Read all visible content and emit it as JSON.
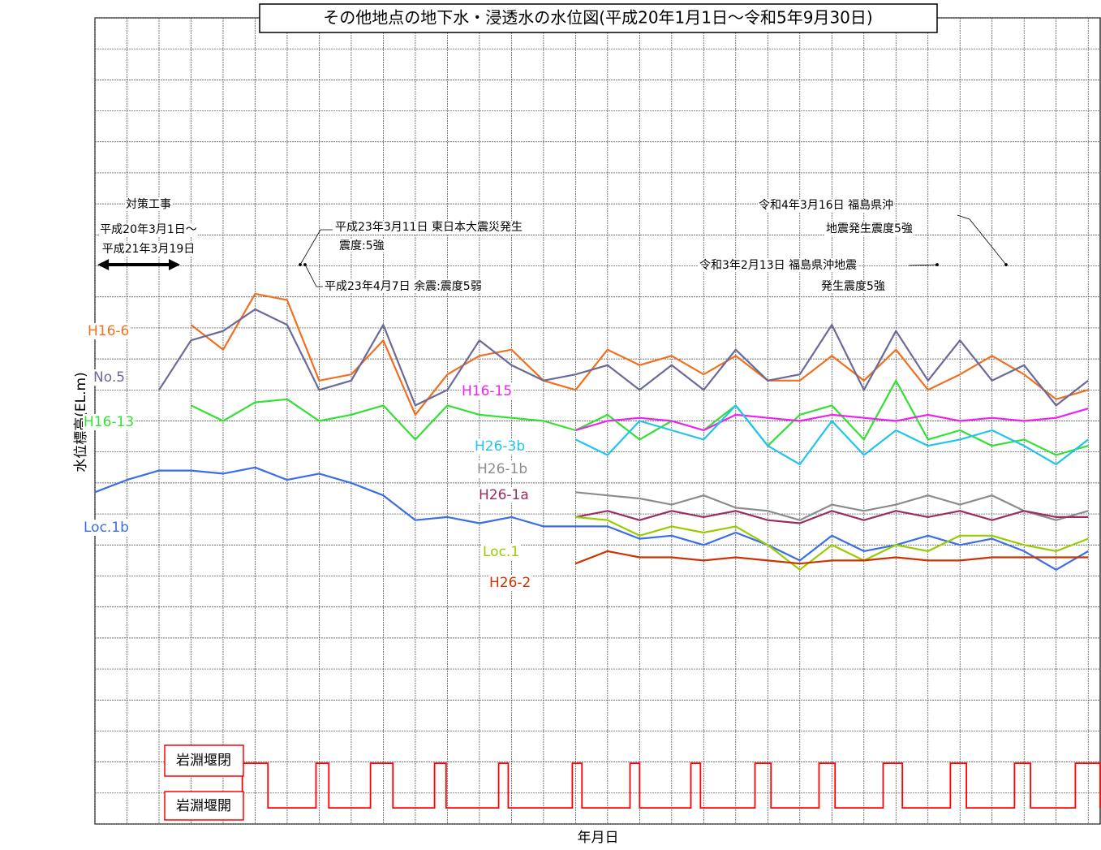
{
  "chart_data": {
    "type": "line",
    "title": "その他地点の地下水・浸透水の水位図(平成20年1月1日～令和5年9月30日)",
    "y_label": "水位標高(EL.m)",
    "x_label": "年月日",
    "xlim": [
      0,
      31.4
    ],
    "ylim": [
      0,
      26
    ],
    "grid_x": [
      0,
      1,
      2,
      3,
      4,
      5,
      6,
      7,
      8,
      9,
      10,
      11,
      12,
      13,
      14,
      15,
      16,
      17,
      18,
      19,
      20,
      21,
      22,
      23,
      24,
      25,
      26,
      27,
      28,
      29,
      30,
      31
    ],
    "grid_y": [
      0,
      1,
      2,
      3,
      4,
      5,
      6,
      7,
      8,
      9,
      10,
      11,
      12,
      13,
      14,
      15,
      16,
      17,
      18,
      19,
      20,
      21,
      22,
      23,
      24,
      25,
      26
    ],
    "x": [
      0,
      1,
      2,
      3,
      4,
      5,
      6,
      7,
      8,
      9,
      10,
      11,
      12,
      13,
      14,
      15,
      16,
      17,
      18,
      19,
      20,
      21,
      22,
      23,
      24,
      25,
      26,
      27,
      28,
      29,
      30,
      31
    ],
    "series": [
      {
        "name": "H16-6",
        "color": "#f07020",
        "values": [
          null,
          null,
          null,
          16.1,
          15.3,
          17.1,
          16.9,
          14.3,
          14.5,
          15.6,
          13.2,
          14.5,
          15.1,
          15.3,
          14.3,
          14.0,
          15.3,
          14.8,
          15.1,
          14.5,
          15.1,
          14.3,
          14.3,
          15.1,
          14.3,
          15.3,
          14.0,
          14.5,
          15.1,
          14.5,
          13.7,
          14.0
        ]
      },
      {
        "name": "No.5",
        "color": "#6a6a98",
        "values": [
          null,
          null,
          14.0,
          15.6,
          15.9,
          16.6,
          16.1,
          14.0,
          14.3,
          16.1,
          13.5,
          14.0,
          15.6,
          14.8,
          14.3,
          14.5,
          14.8,
          14.0,
          14.8,
          14.0,
          15.3,
          14.3,
          14.5,
          16.1,
          14.0,
          15.9,
          14.3,
          15.6,
          14.3,
          14.8,
          13.5,
          14.3
        ]
      },
      {
        "name": "H16-13",
        "color": "#33e033",
        "values": [
          null,
          null,
          null,
          13.5,
          13.0,
          13.6,
          13.7,
          13.0,
          13.2,
          13.5,
          12.4,
          13.5,
          13.2,
          13.1,
          13.0,
          12.7,
          13.2,
          12.4,
          13.0,
          12.7,
          13.5,
          12.2,
          13.2,
          13.5,
          12.4,
          14.3,
          12.4,
          12.7,
          12.2,
          12.4,
          11.9,
          12.2
        ]
      },
      {
        "name": "H16-15",
        "color": "#ee22ee",
        "values": [
          null,
          null,
          null,
          null,
          null,
          null,
          null,
          null,
          null,
          null,
          null,
          null,
          null,
          null,
          null,
          12.7,
          13.0,
          13.1,
          13.0,
          12.7,
          13.2,
          13.1,
          13.0,
          13.2,
          13.1,
          13.0,
          13.2,
          13.0,
          13.1,
          13.0,
          13.1,
          13.4
        ]
      },
      {
        "name": "H26-3b",
        "color": "#22c4ee",
        "values": [
          null,
          null,
          null,
          null,
          null,
          null,
          null,
          null,
          null,
          null,
          null,
          null,
          null,
          null,
          null,
          12.4,
          11.9,
          13.0,
          12.7,
          12.4,
          13.5,
          12.2,
          11.6,
          13.0,
          11.9,
          12.7,
          12.2,
          12.4,
          12.7,
          12.2,
          11.6,
          12.4
        ]
      },
      {
        "name": "H26-1b",
        "color": "#8c8c8c",
        "values": [
          null,
          null,
          null,
          null,
          null,
          null,
          null,
          null,
          null,
          null,
          null,
          null,
          null,
          null,
          null,
          10.7,
          10.6,
          10.5,
          10.3,
          10.6,
          10.2,
          10.1,
          9.8,
          10.3,
          10.1,
          10.3,
          10.6,
          10.3,
          10.6,
          10.1,
          9.8,
          10.1
        ]
      },
      {
        "name": "H26-1a",
        "color": "#9b2d62",
        "values": [
          null,
          null,
          null,
          null,
          null,
          null,
          null,
          null,
          null,
          null,
          null,
          null,
          null,
          null,
          null,
          9.9,
          10.1,
          9.8,
          10.1,
          9.9,
          10.1,
          9.8,
          9.7,
          10.1,
          9.8,
          10.1,
          9.9,
          10.1,
          9.8,
          10.1,
          9.9,
          9.9
        ]
      },
      {
        "name": "Loc.1b",
        "color": "#3a6de8",
        "values": [
          10.7,
          11.1,
          11.4,
          11.4,
          11.3,
          11.5,
          11.1,
          11.3,
          11.0,
          10.6,
          9.8,
          9.9,
          9.7,
          9.9,
          9.6,
          9.6,
          9.6,
          9.2,
          9.3,
          9.0,
          9.4,
          9.0,
          8.5,
          9.3,
          8.8,
          9.0,
          9.3,
          9.0,
          9.2,
          8.8,
          8.2,
          8.8
        ]
      },
      {
        "name": "Loc.1",
        "color": "#99cc00",
        "values": [
          null,
          null,
          null,
          null,
          null,
          null,
          null,
          null,
          null,
          null,
          null,
          null,
          null,
          null,
          null,
          9.9,
          9.8,
          9.3,
          9.6,
          9.4,
          9.6,
          9.0,
          8.2,
          9.0,
          8.5,
          9.0,
          8.8,
          9.3,
          9.3,
          9.0,
          8.8,
          9.2
        ]
      },
      {
        "name": "H26-2",
        "color": "#cc3300",
        "values": [
          null,
          null,
          null,
          null,
          null,
          null,
          null,
          null,
          null,
          null,
          null,
          null,
          null,
          null,
          null,
          8.4,
          8.8,
          8.6,
          8.6,
          8.5,
          8.6,
          8.5,
          8.4,
          8.5,
          8.5,
          8.6,
          8.5,
          8.5,
          8.6,
          8.6,
          8.6,
          8.6
        ]
      }
    ],
    "gate": {
      "closed_label": "岩淵堰閉",
      "open_label": "岩淵堰開",
      "color": "#ff0000",
      "closed_level": 1.96,
      "open_level": 0.52,
      "closed_periods": [
        [
          4.6,
          5.4
        ],
        [
          6.9,
          7.3
        ],
        [
          8.6,
          9.3
        ],
        [
          10.6,
          10.96
        ],
        [
          12.6,
          12.9
        ],
        [
          14.9,
          15.2
        ],
        [
          16.7,
          17.0
        ],
        [
          18.6,
          18.9
        ],
        [
          20.6,
          21.1
        ],
        [
          22.6,
          23.1
        ],
        [
          24.6,
          25.2
        ],
        [
          26.7,
          27.2
        ],
        [
          28.7,
          29.2
        ],
        [
          30.6,
          31.4
        ]
      ]
    },
    "countermeasure_period": [
      0.08,
      2.66
    ],
    "annotations": [
      "対策工事",
      "平成20年3月1日～",
      "平成21年3月19日",
      "平成23年3月11日 東日本大震災発生",
      "震度:5強",
      "平成23年4月7日 余震:震度5弱",
      "令和3年2月13日 福島県沖地震",
      "発生震度5強",
      "令和4年3月16日 福島県沖",
      "地震発生震度5強"
    ]
  }
}
